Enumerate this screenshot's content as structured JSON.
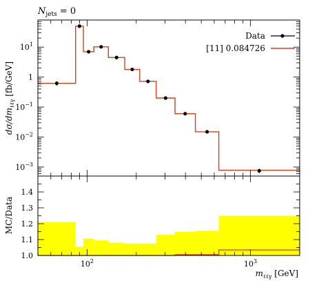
{
  "header": {
    "njets_symbol": "N",
    "njets_sub": "jets",
    "njets_eq": " = 0"
  },
  "colors": {
    "mc": "#e03c14",
    "band": "#ffff00",
    "data": "#000000"
  },
  "chart_data": {
    "type": "line",
    "log_x": true,
    "xlim": [
      50,
      2000
    ],
    "xlabel": "m",
    "xlabel_sub": "ℓℓγ",
    "xlabel_unit": " [GeV]",
    "top_panel": {
      "log_y": true,
      "ylim": [
        0.0005,
        80
      ],
      "ylabel": "dσ/dm",
      "ylabel_sub": "ℓℓγ",
      "ylabel_unit": " [fb/GeV]",
      "y_ticks": [
        {
          "value": 0.001,
          "base": "10",
          "exp": "−3"
        },
        {
          "value": 0.01,
          "base": "10",
          "exp": "−2"
        },
        {
          "value": 0.1,
          "base": "10",
          "exp": "−1"
        },
        {
          "value": 1,
          "base": "1",
          "exp": ""
        },
        {
          "value": 10,
          "base": "10",
          "exp": "1"
        }
      ]
    },
    "legend": {
      "placement": "top-right",
      "entries": [
        {
          "label": "Data",
          "kind": "data"
        },
        {
          "label": "[11] 0.084726",
          "kind": "mc"
        }
      ]
    },
    "x_ticks": [
      {
        "value": 100,
        "base": "10",
        "exp": "2"
      },
      {
        "value": 1000,
        "base": "10",
        "exp": "3"
      }
    ],
    "bins": [
      {
        "lo": 50,
        "hi": 85,
        "data": 0.62,
        "err": 0.1,
        "mc": 0.62
      },
      {
        "lo": 85,
        "hi": 95,
        "data": 50,
        "err": 3,
        "mc": 50
      },
      {
        "lo": 95,
        "hi": 110,
        "data": 7.0,
        "err": 0.5,
        "mc": 7.0
      },
      {
        "lo": 110,
        "hi": 135,
        "data": 10.2,
        "err": 0.5,
        "mc": 10.2
      },
      {
        "lo": 135,
        "hi": 170,
        "data": 4.5,
        "err": 0.2,
        "mc": 4.5
      },
      {
        "lo": 170,
        "hi": 210,
        "data": 1.8,
        "err": 0.1,
        "mc": 1.8
      },
      {
        "lo": 210,
        "hi": 265,
        "data": 0.72,
        "err": 0.04,
        "mc": 0.72
      },
      {
        "lo": 265,
        "hi": 345,
        "data": 0.2,
        "err": 0.01,
        "mc": 0.2
      },
      {
        "lo": 345,
        "hi": 460,
        "data": 0.06,
        "err": 0.004,
        "mc": 0.06
      },
      {
        "lo": 460,
        "hi": 640,
        "data": 0.015,
        "err": 0.001,
        "mc": 0.015
      },
      {
        "lo": 640,
        "hi": 2000,
        "data": 0.00075,
        "err": 0.00012,
        "mc": 0.00078
      }
    ],
    "ratio_panel": {
      "ylabel": "MC/Data",
      "ylim": [
        1.0,
        1.5
      ],
      "y_ticks": [
        "1.0",
        "1.1",
        "1.2",
        "1.3",
        "1.4"
      ],
      "band": [
        1.21,
        1.055,
        1.105,
        1.095,
        1.08,
        1.075,
        1.075,
        1.13,
        1.15,
        1.155,
        1.25
      ],
      "ratio": [
        1.0,
        1.0,
        1.0,
        1.0,
        1.0,
        1.0,
        1.0,
        1.0,
        1.005,
        1.005,
        1.035
      ]
    }
  }
}
